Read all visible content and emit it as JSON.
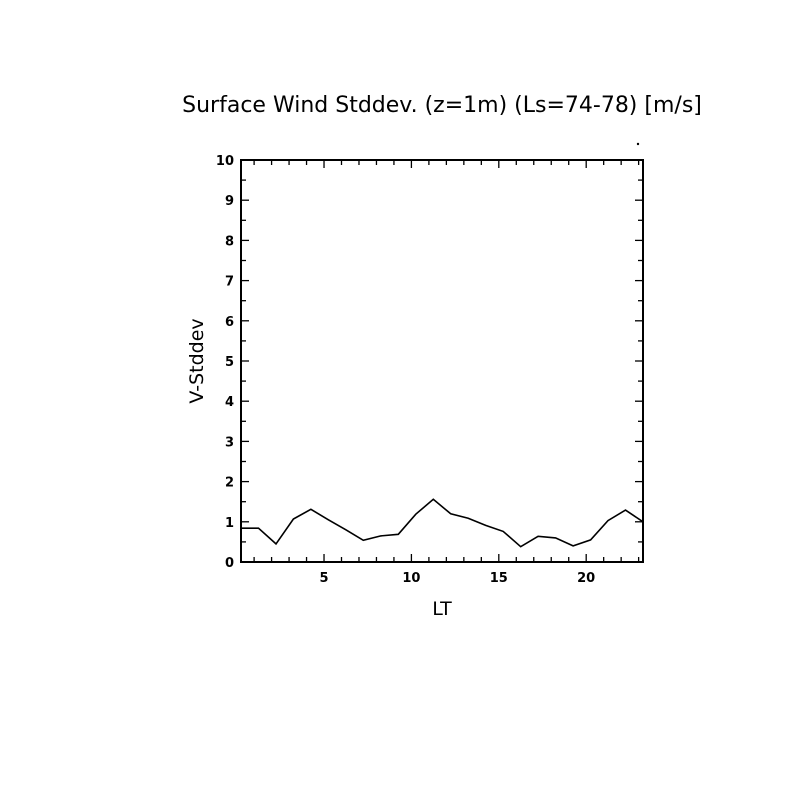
{
  "chart_data": {
    "type": "line",
    "title": "Surface Wind Stddev. (z=1m) (Ls=74-78) [m/s]",
    "xlabel": "LT",
    "ylabel": "V-Stddev",
    "xlim": [
      0.25,
      23.25
    ],
    "ylim": [
      0,
      10
    ],
    "xticks": [
      5,
      10,
      15,
      20
    ],
    "xtick_labels": [
      "5",
      "10",
      "15",
      "20"
    ],
    "yticks": [
      0,
      1,
      2,
      3,
      4,
      5,
      6,
      7,
      8,
      9,
      10
    ],
    "ytick_labels": [
      "0",
      "1",
      "2",
      "3",
      "4",
      "5",
      "6",
      "7",
      "8",
      "9",
      "10"
    ],
    "grid": false,
    "line_color": "#000000",
    "series": [
      {
        "x": [
          0.25,
          1.25,
          2.25,
          3.25,
          4.25,
          5.25,
          6.25,
          7.25,
          8.25,
          9.25,
          10.25,
          11.25,
          12.25,
          13.25,
          14.25,
          15.25,
          16.25,
          17.25,
          18.25,
          19.25,
          20.25,
          21.25,
          22.25,
          23.25
        ],
        "values": [
          0.84,
          0.84,
          0.45,
          1.07,
          1.31,
          1.05,
          0.8,
          0.54,
          0.65,
          0.69,
          1.19,
          1.56,
          1.2,
          1.09,
          0.91,
          0.76,
          0.38,
          0.64,
          0.6,
          0.4,
          0.55,
          1.03,
          1.29,
          1.0
        ]
      }
    ]
  }
}
